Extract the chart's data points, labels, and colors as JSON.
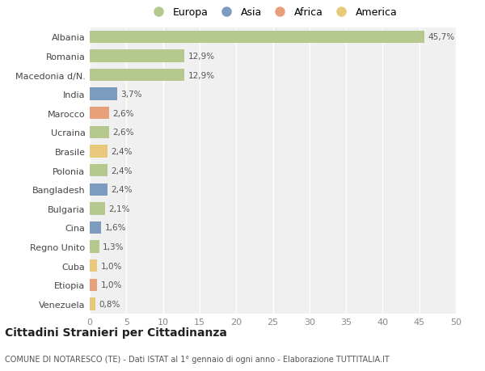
{
  "countries": [
    "Albania",
    "Romania",
    "Macedonia d/N.",
    "India",
    "Marocco",
    "Ucraina",
    "Brasile",
    "Polonia",
    "Bangladesh",
    "Bulgaria",
    "Cina",
    "Regno Unito",
    "Cuba",
    "Etiopia",
    "Venezuela"
  ],
  "values": [
    45.7,
    12.9,
    12.9,
    3.7,
    2.6,
    2.6,
    2.4,
    2.4,
    2.4,
    2.1,
    1.6,
    1.3,
    1.0,
    1.0,
    0.8
  ],
  "labels": [
    "45,7%",
    "12,9%",
    "12,9%",
    "3,7%",
    "2,6%",
    "2,6%",
    "2,4%",
    "2,4%",
    "2,4%",
    "2,1%",
    "1,6%",
    "1,3%",
    "1,0%",
    "1,0%",
    "0,8%"
  ],
  "colors": [
    "#b5c98e",
    "#b5c98e",
    "#b5c98e",
    "#7b9bbf",
    "#e8a07a",
    "#b5c98e",
    "#e8c87a",
    "#b5c98e",
    "#7b9bbf",
    "#b5c98e",
    "#7b9bbf",
    "#b5c98e",
    "#e8c87a",
    "#e8a07a",
    "#e8c87a"
  ],
  "legend_labels": [
    "Europa",
    "Asia",
    "Africa",
    "America"
  ],
  "legend_colors": [
    "#b5c98e",
    "#7b9bbf",
    "#e8a07a",
    "#e8c87a"
  ],
  "title": "Cittadini Stranieri per Cittadinanza",
  "subtitle": "COMUNE DI NOTARESCO (TE) - Dati ISTAT al 1° gennaio di ogni anno - Elaborazione TUTTITALIA.IT",
  "xlim": [
    0,
    50
  ],
  "xticks": [
    0,
    5,
    10,
    15,
    20,
    25,
    30,
    35,
    40,
    45,
    50
  ],
  "bg_color": "#ffffff",
  "plot_bg_color": "#f0f0f0",
  "grid_color": "#ffffff"
}
